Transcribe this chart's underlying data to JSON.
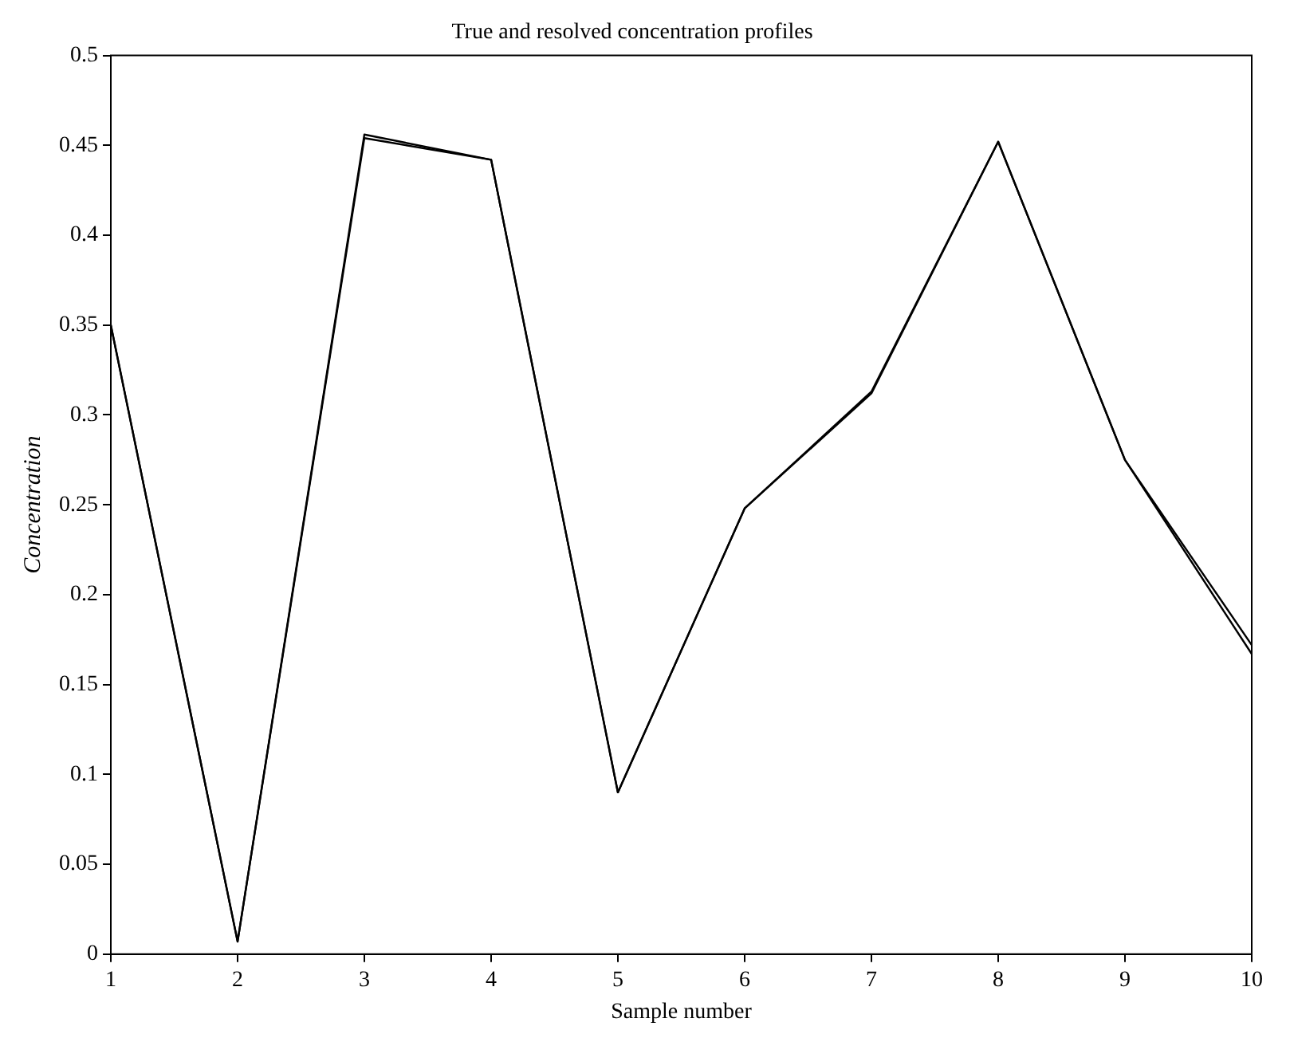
{
  "chart_data": {
    "type": "line",
    "title": "True and resolved concentration profiles",
    "xlabel": "Sample number",
    "ylabel": "Concentration",
    "x": [
      1,
      2,
      3,
      4,
      5,
      6,
      7,
      8,
      9,
      10
    ],
    "series": [
      {
        "color": "#000000",
        "values": [
          0.35,
          0.007,
          0.456,
          0.442,
          0.09,
          0.248,
          0.312,
          0.452,
          0.275,
          0.172
        ]
      },
      {
        "color": "#000000",
        "values": [
          0.35,
          0.007,
          0.454,
          0.442,
          0.09,
          0.248,
          0.313,
          0.452,
          0.275,
          0.167
        ]
      }
    ],
    "xlim": [
      1,
      10
    ],
    "xticks": [
      1,
      2,
      3,
      4,
      5,
      6,
      7,
      8,
      9,
      10
    ],
    "ylim": [
      0,
      0.5
    ],
    "yticks": [
      0,
      0.05,
      0.1,
      0.15,
      0.2,
      0.25,
      0.3,
      0.35,
      0.4,
      0.45,
      0.5
    ],
    "grid": false,
    "legend": false,
    "marker": "none",
    "line_style": "solid"
  }
}
